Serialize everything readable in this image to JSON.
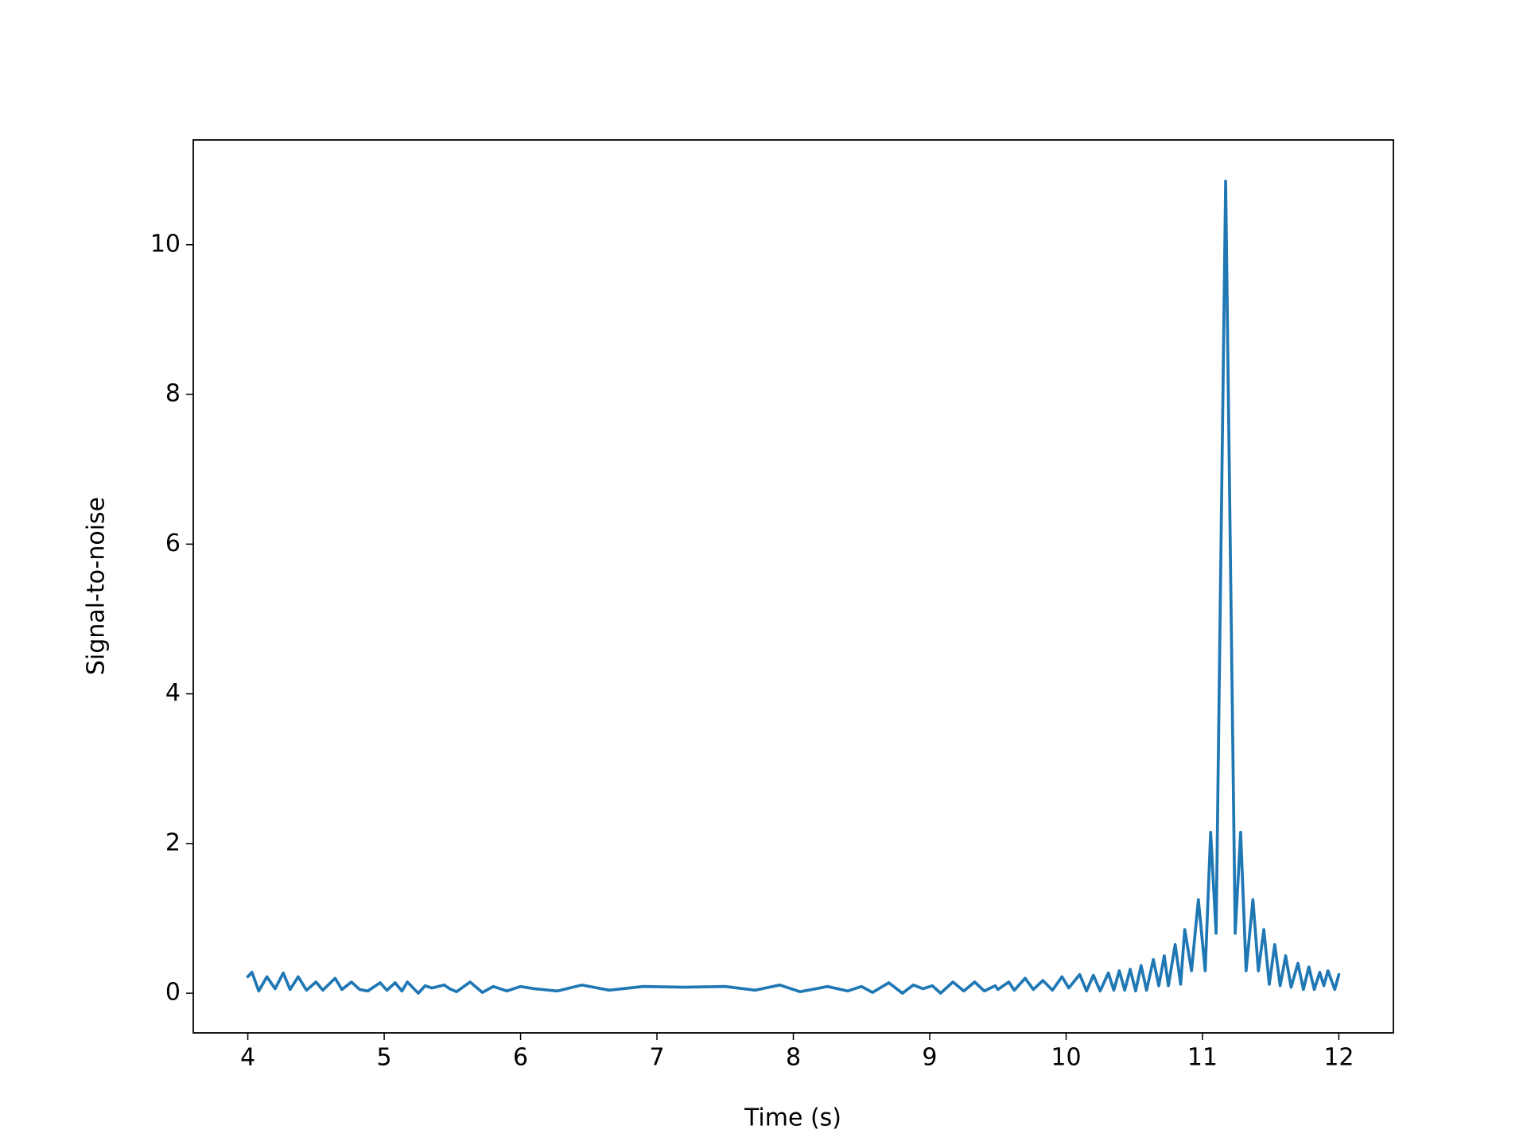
{
  "chart_data": {
    "type": "line",
    "xlabel": "Time (s)",
    "ylabel": "Signal-to-noise",
    "x": [
      4.0,
      4.03,
      4.08,
      4.14,
      4.2,
      4.26,
      4.31,
      4.37,
      4.43,
      4.5,
      4.55,
      4.64,
      4.69,
      4.76,
      4.82,
      4.88,
      4.97,
      5.02,
      5.08,
      5.13,
      5.17,
      5.25,
      5.3,
      5.35,
      5.44,
      5.48,
      5.53,
      5.63,
      5.72,
      5.8,
      5.9,
      6.0,
      6.1,
      6.27,
      6.45,
      6.65,
      6.9,
      7.2,
      7.5,
      7.72,
      7.9,
      8.05,
      8.25,
      8.4,
      8.5,
      8.58,
      8.7,
      8.8,
      8.88,
      8.95,
      9.02,
      9.08,
      9.17,
      9.25,
      9.33,
      9.4,
      9.48,
      9.5,
      9.58,
      9.62,
      9.7,
      9.76,
      9.83,
      9.9,
      9.97,
      10.02,
      10.1,
      10.15,
      10.2,
      10.25,
      10.31,
      10.35,
      10.39,
      10.43,
      10.47,
      10.51,
      10.55,
      10.59,
      10.64,
      10.68,
      10.72,
      10.75,
      10.8,
      10.84,
      10.87,
      10.92,
      10.97,
      11.02,
      11.06,
      11.1,
      11.17,
      11.24,
      11.28,
      11.32,
      11.37,
      11.41,
      11.45,
      11.49,
      11.53,
      11.57,
      11.61,
      11.65,
      11.7,
      11.74,
      11.78,
      11.82,
      11.86,
      11.89,
      11.92,
      11.97,
      12.0
    ],
    "series": [
      {
        "color": "#1f77b4",
        "values": [
          0.22,
          0.28,
          0.03,
          0.22,
          0.06,
          0.27,
          0.05,
          0.22,
          0.04,
          0.15,
          0.04,
          0.2,
          0.05,
          0.15,
          0.05,
          0.03,
          0.14,
          0.04,
          0.14,
          0.03,
          0.15,
          0.0,
          0.1,
          0.07,
          0.11,
          0.06,
          0.02,
          0.15,
          0.01,
          0.09,
          0.03,
          0.09,
          0.06,
          0.03,
          0.11,
          0.04,
          0.09,
          0.08,
          0.09,
          0.04,
          0.11,
          0.02,
          0.09,
          0.03,
          0.09,
          0.01,
          0.14,
          0.0,
          0.11,
          0.06,
          0.1,
          0.0,
          0.15,
          0.03,
          0.15,
          0.03,
          0.1,
          0.05,
          0.15,
          0.04,
          0.2,
          0.05,
          0.17,
          0.04,
          0.22,
          0.07,
          0.25,
          0.03,
          0.24,
          0.03,
          0.27,
          0.04,
          0.3,
          0.04,
          0.32,
          0.03,
          0.37,
          0.04,
          0.45,
          0.1,
          0.5,
          0.1,
          0.65,
          0.12,
          0.85,
          0.3,
          1.25,
          0.3,
          2.15,
          0.8,
          10.85,
          0.8,
          2.15,
          0.3,
          1.25,
          0.3,
          0.85,
          0.12,
          0.65,
          0.1,
          0.5,
          0.08,
          0.4,
          0.05,
          0.35,
          0.05,
          0.28,
          0.1,
          0.3,
          0.05,
          0.25
        ]
      }
    ],
    "xlim": [
      3.6,
      12.4
    ],
    "ylim": [
      -0.53,
      11.4
    ],
    "xticks": [
      4,
      5,
      6,
      7,
      8,
      9,
      10,
      11,
      12
    ],
    "yticks": [
      0,
      2,
      4,
      6,
      8,
      10
    ]
  }
}
